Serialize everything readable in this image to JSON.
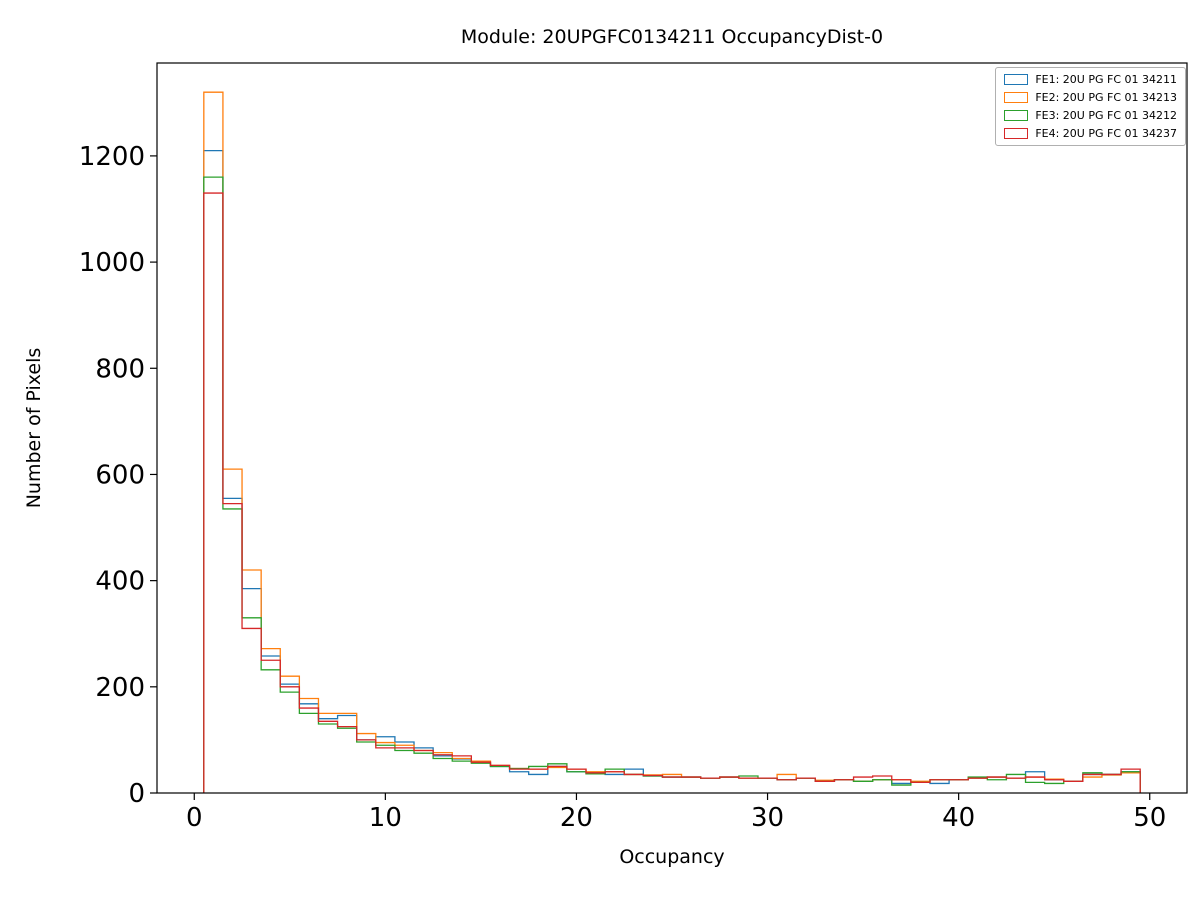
{
  "chart_data": {
    "type": "histogram-step",
    "title": "Module: 20UPGFC0134211 OccupancyDist-0",
    "xlabel": "Occupancy",
    "ylabel": "Number of Pixels",
    "xlim": [
      -1.95,
      51.95
    ],
    "ylim": [
      0,
      1375
    ],
    "xticks": [
      0,
      10,
      20,
      30,
      40,
      50
    ],
    "yticks": [
      0,
      200,
      400,
      600,
      800,
      1000,
      1200
    ],
    "bin_start": 0.5,
    "bin_width": 1,
    "grid": false,
    "legend_position": "upper right",
    "series": [
      {
        "name": "FE1: 20U PG FC 01 34211",
        "color": "#1f77b4",
        "values": [
          1210,
          555,
          385,
          258,
          205,
          168,
          140,
          146,
          100,
          106,
          96,
          85,
          70,
          64,
          58,
          50,
          40,
          35,
          50,
          40,
          38,
          35,
          45,
          32,
          30,
          30,
          28,
          30,
          28,
          28,
          25,
          28,
          22,
          25,
          22,
          25,
          18,
          20,
          18,
          25,
          28,
          30,
          28,
          40,
          25,
          22,
          35,
          35,
          40
        ]
      },
      {
        "name": "FE2: 20U PG FC 01 34213",
        "color": "#ff7f0e",
        "values": [
          1320,
          610,
          420,
          272,
          220,
          178,
          150,
          150,
          112,
          95,
          90,
          80,
          76,
          65,
          60,
          52,
          46,
          45,
          48,
          45,
          40,
          40,
          35,
          34,
          35,
          30,
          28,
          30,
          28,
          28,
          35,
          28,
          24,
          25,
          22,
          25,
          25,
          22,
          25,
          25,
          28,
          30,
          28,
          30,
          26,
          22,
          30,
          34,
          38
        ]
      },
      {
        "name": "FE3: 20U PG FC 01 34212",
        "color": "#2ca02c",
        "values": [
          1160,
          535,
          330,
          232,
          190,
          150,
          130,
          122,
          96,
          90,
          80,
          75,
          65,
          60,
          56,
          50,
          46,
          50,
          55,
          40,
          36,
          45,
          35,
          32,
          30,
          30,
          28,
          30,
          32,
          28,
          25,
          28,
          22,
          25,
          22,
          25,
          15,
          20,
          25,
          25,
          30,
          25,
          35,
          20,
          18,
          22,
          38,
          35,
          40
        ]
      },
      {
        "name": "FE4: 20U PG FC 01 34237",
        "color": "#d62728",
        "values": [
          1130,
          545,
          310,
          250,
          200,
          160,
          135,
          125,
          100,
          85,
          85,
          80,
          72,
          70,
          58,
          52,
          45,
          45,
          50,
          45,
          38,
          40,
          35,
          33,
          30,
          30,
          28,
          30,
          28,
          28,
          25,
          28,
          22,
          25,
          30,
          32,
          25,
          20,
          25,
          25,
          28,
          30,
          28,
          30,
          25,
          22,
          35,
          35,
          45
        ]
      }
    ]
  }
}
